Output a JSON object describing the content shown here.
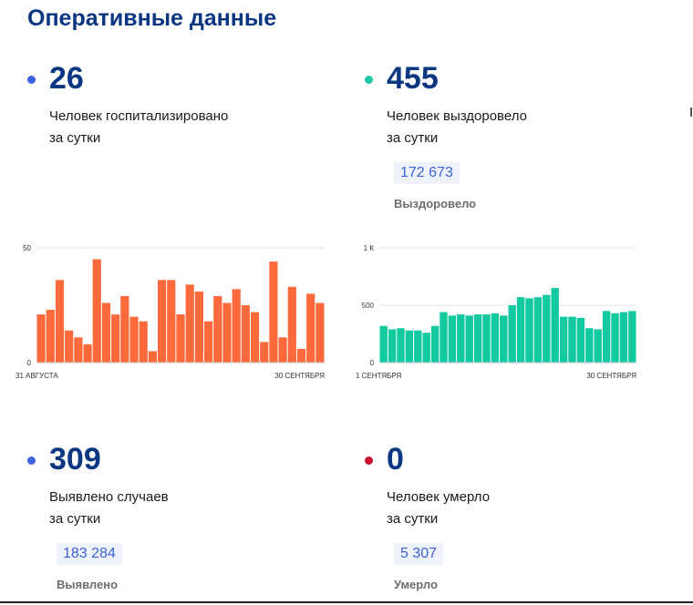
{
  "page": {
    "title": "Оперативные данные"
  },
  "colors": {
    "accent_blue": "#0a3682",
    "dot_blue": "#3d63e0",
    "dot_green": "#1dc6a4",
    "dot_red": "#c8102e",
    "bar_orange": "#ff6a3d",
    "bar_green": "#12c9a0"
  },
  "stats": {
    "hospitalized": {
      "value": "26",
      "line1": "Человек госпитализировано",
      "line2": "за сутки"
    },
    "recovered": {
      "value": "455",
      "line1": "Человек выздоровело",
      "line2": "за сутки",
      "total": "172 673",
      "total_label": "Выздоровело"
    },
    "cases": {
      "value": "309",
      "line1": "Выявлено случаев",
      "line2": "за сутки",
      "total": "183 284",
      "total_label": "Выявлено"
    },
    "deaths": {
      "value": "0",
      "line1": "Человек умерло",
      "line2": "за сутки",
      "total": "5 307",
      "total_label": "Умерло"
    }
  },
  "chart_data": [
    {
      "type": "bar",
      "name": "hospitalized",
      "x_start_label": "31 АВГУСТА",
      "x_end_label": "30 СЕНТЯБРЯ",
      "y_ticks": [
        "50",
        "0"
      ],
      "ylim": [
        0,
        50
      ],
      "values": [
        21,
        23,
        36,
        14,
        11,
        8,
        45,
        26,
        21,
        29,
        20,
        18,
        5,
        36,
        36,
        21,
        34,
        31,
        18,
        29,
        26,
        32,
        25,
        22,
        9,
        44,
        11,
        33,
        6,
        30,
        26
      ]
    },
    {
      "type": "bar",
      "name": "recovered",
      "x_start_label": "1 СЕНТЯБРЯ",
      "x_end_label": "30 СЕНТЯБРЯ",
      "y_ticks": [
        "1 К",
        "500",
        "0"
      ],
      "ylim": [
        0,
        1000
      ],
      "values": [
        320,
        290,
        300,
        280,
        280,
        260,
        320,
        440,
        410,
        420,
        410,
        420,
        420,
        430,
        410,
        500,
        570,
        560,
        570,
        590,
        650,
        400,
        400,
        390,
        300,
        290,
        450,
        430,
        440,
        450
      ]
    }
  ]
}
